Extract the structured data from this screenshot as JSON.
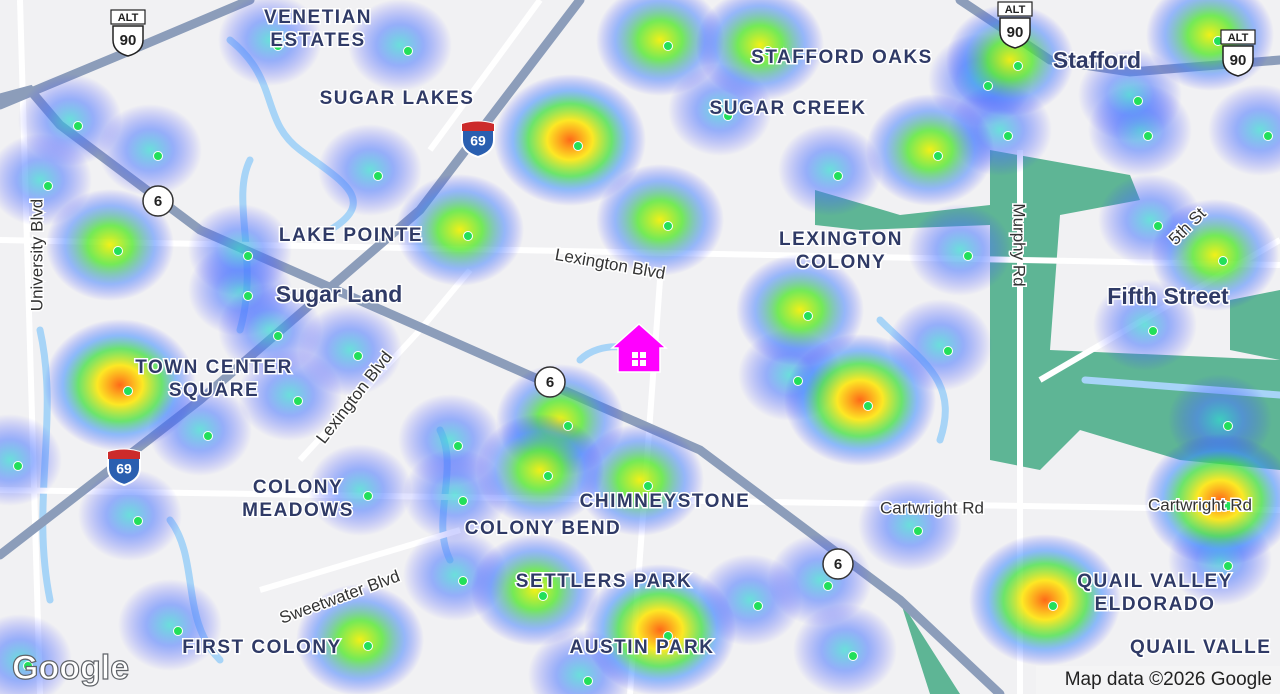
{
  "map": {
    "neighborhoods": [
      {
        "lines": [
          "VENETIAN",
          "ESTATES"
        ]
      },
      {
        "lines": [
          "SUGAR LAKES"
        ]
      },
      {
        "lines": [
          "STAFFORD OAKS"
        ]
      },
      {
        "lines": [
          "SUGAR CREEK"
        ]
      },
      {
        "lines": [
          "LAKE POINTE"
        ]
      },
      {
        "lines": [
          "LEXINGTON",
          "COLONY"
        ]
      },
      {
        "lines": [
          "TOWN CENTER",
          "SQUARE"
        ]
      },
      {
        "lines": [
          "COLONY",
          "MEADOWS"
        ]
      },
      {
        "lines": [
          "COLONY BEND"
        ]
      },
      {
        "lines": [
          "CHIMNEYSTONE"
        ]
      },
      {
        "lines": [
          "SETTLERS PARK"
        ]
      },
      {
        "lines": [
          "AUSTIN PARK"
        ]
      },
      {
        "lines": [
          "FIRST COLONY"
        ]
      },
      {
        "lines": [
          "QUAIL VALLEY",
          "ELDORADO"
        ]
      },
      {
        "lines": [
          "QUAIL VALLE"
        ]
      }
    ],
    "cities": [
      "Sugar Land",
      "Stafford",
      "Fifth Street"
    ],
    "roads": [
      "University Blvd",
      "Lexington Blvd",
      "Lexington Blvd",
      "Sweetwater Blvd",
      "Murphy Rd",
      "5th St",
      "Cartwright Rd",
      "Cartwright Rd"
    ],
    "shields": [
      {
        "alt": "ALT",
        "route": "90"
      },
      {
        "alt": "ALT",
        "route": "90"
      },
      {
        "alt": "ALT",
        "route": "90"
      },
      {
        "route": "69"
      },
      {
        "route": "69"
      },
      {
        "route": "6"
      },
      {
        "route": "6"
      },
      {
        "route": "6"
      }
    ],
    "logo": "Google",
    "attribution": "Map data ©2026 Google"
  }
}
